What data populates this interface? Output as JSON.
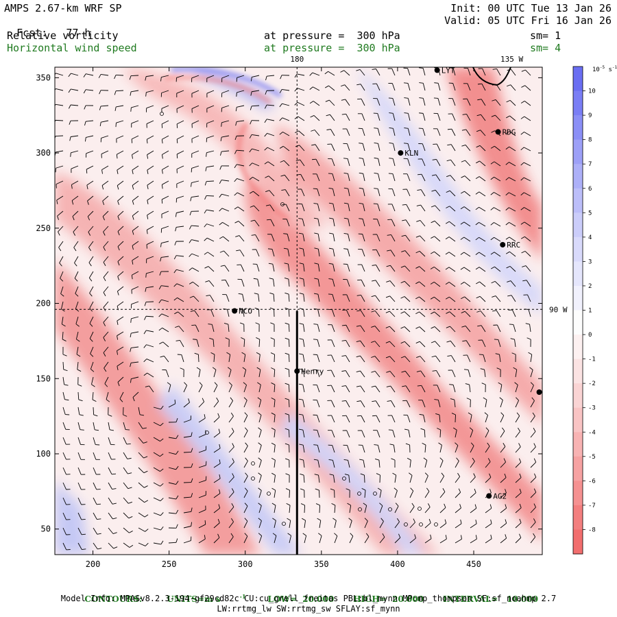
{
  "header": {
    "model": "AMPS 2.67-km WRF SP",
    "init": "Init: 00 UTC Tue 13 Jan 26",
    "fcst_label": "Fcst:",
    "fcst_value": "77 h",
    "valid": "Valid: 05 UTC Fri 16 Jan 26",
    "fields": [
      {
        "name": "Relative vorticity",
        "level": "at pressure =  300 hPa",
        "smooth": "sm= 1",
        "color": "#000000"
      },
      {
        "name": "Horizontal wind speed",
        "level": "at pressure =  300 hPa",
        "smooth": "sm= 4",
        "color": "#1f7a1f"
      }
    ]
  },
  "map": {
    "x_axis": {
      "ticks": [
        200,
        250,
        300,
        350,
        400,
        450
      ],
      "range": [
        175,
        495
      ]
    },
    "y_axis": {
      "ticks": [
        50,
        100,
        150,
        200,
        250,
        300,
        350
      ],
      "range": [
        33,
        357
      ]
    },
    "meridian_labels": [
      {
        "text": "180",
        "x": 334,
        "y": 357
      },
      {
        "text": "135 W",
        "x": 475,
        "y": 357
      },
      {
        "text": "90 W",
        "x": 495,
        "y": 196
      }
    ],
    "stations": [
      {
        "name": "LYT",
        "x": 426,
        "y": 355
      },
      {
        "name": "RDG",
        "x": 466,
        "y": 314
      },
      {
        "name": "KLN",
        "x": 402,
        "y": 300
      },
      {
        "name": "RRC",
        "x": 469,
        "y": 239
      },
      {
        "name": "NCO",
        "x": 293,
        "y": 195
      },
      {
        "name": "Henry",
        "x": 334,
        "y": 155
      },
      {
        "name": "AG2",
        "x": 460,
        "y": 72
      },
      {
        "name": "",
        "x": 493,
        "y": 141
      }
    ],
    "cross_section": {
      "x": 334,
      "y_from": 33,
      "y_to": 195
    }
  },
  "colorbar": {
    "unit_text": "10",
    "unit_exp": "-5",
    "unit_suffix": " s",
    "unit_suffix_exp": "-1",
    "labels": [
      "10",
      "9",
      "8",
      "7",
      "6",
      "5",
      "4",
      "3",
      "2",
      "1",
      "0",
      "-1",
      "-2",
      "-3",
      "-4",
      "-5",
      "-6",
      "-7",
      "-8"
    ],
    "colors": [
      "#6a6ef2",
      "#7a7ef5",
      "#8b8ff6",
      "#9da0f7",
      "#adb0f8",
      "#bcbef9",
      "#cbcdfa",
      "#d9dafb",
      "#e5e6fc",
      "#f1f1fd",
      "#fdfdfd",
      "#fdf1f1",
      "#fbe3e3",
      "#fad4d4",
      "#f9c4c4",
      "#f8b3b3",
      "#f6a2a2",
      "#f59191",
      "#f37f7f",
      "#f26e6e"
    ]
  },
  "footer": {
    "contours_label": "CONTOURS:",
    "units_label": "UNITS=m s",
    "units_exp": "-1",
    "low": "LOW=  20.000",
    "high": "HIGH=  20.000",
    "interval": "INTERVAL=   10.000",
    "model_info": "Model Info: MPASv8.2.3-194-gf29cd82c CU:cu_grell_freitas PBL:bl_mynn MP:mp_thompson SF:sf_noahmp 2.7",
    "model_info2": "LW:rrtmg_lw SW:rrtmg_sw SFLAY:sf_mynn"
  }
}
